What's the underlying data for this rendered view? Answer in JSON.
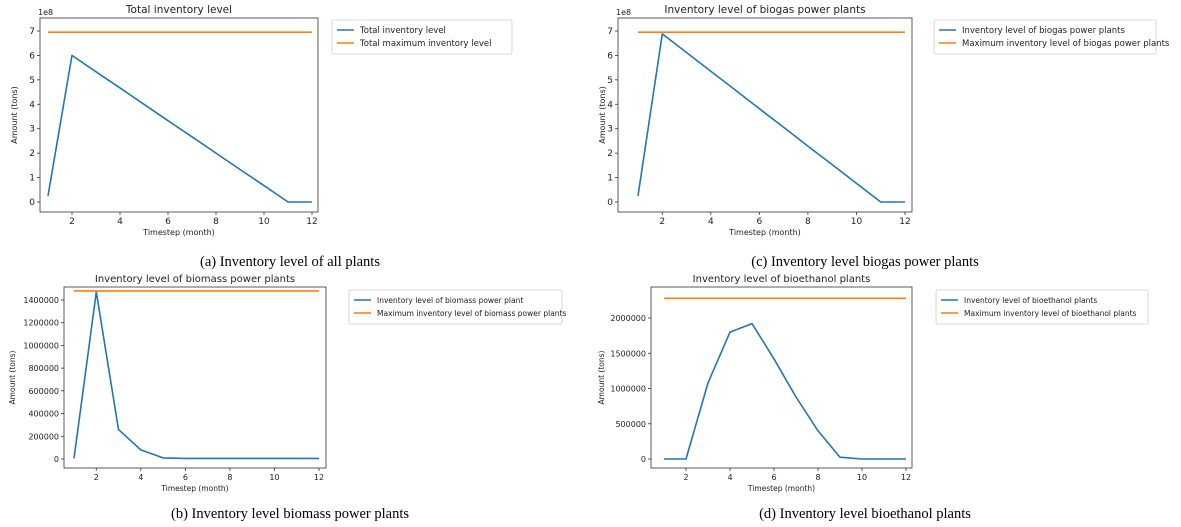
{
  "chart_data": [
    {
      "type": "line",
      "title": "Total inventory level",
      "xlabel": "Timestep (month)",
      "ylabel": "Amount (tons)",
      "exponent_label": "1e8",
      "x": [
        1,
        2,
        3,
        4,
        5,
        6,
        7,
        8,
        9,
        10,
        11,
        12
      ],
      "xlim": [
        1,
        12
      ],
      "ylim": [
        0,
        7
      ],
      "xticks": [
        2,
        4,
        6,
        8,
        10,
        12
      ],
      "yticks": [
        0,
        1,
        2,
        3,
        4,
        5,
        6,
        7
      ],
      "ytick_labels": [
        "0",
        "1",
        "2",
        "3",
        "4",
        "5",
        "6",
        "7"
      ],
      "grid": false,
      "legend_position": "right, outside",
      "series": [
        {
          "name": "Total inventory level",
          "color": "#1f77b4",
          "values": [
            0.25,
            6.0,
            5.33,
            4.67,
            4.0,
            3.33,
            2.67,
            2.0,
            1.33,
            0.67,
            0.0,
            0.0
          ]
        },
        {
          "name": "Total maximum inventory level",
          "color": "#ff7f0e",
          "values": [
            6.95,
            6.95,
            6.95,
            6.95,
            6.95,
            6.95,
            6.95,
            6.95,
            6.95,
            6.95,
            6.95,
            6.95
          ]
        }
      ],
      "caption": "(a) Inventory level of all plants"
    },
    {
      "type": "line",
      "title": "Inventory level of biogas power plants",
      "xlabel": "Timestep (month)",
      "ylabel": "Amount (tons)",
      "exponent_label": "1e8",
      "x": [
        1,
        2,
        3,
        4,
        5,
        6,
        7,
        8,
        9,
        10,
        11,
        12
      ],
      "xlim": [
        1,
        12
      ],
      "ylim": [
        0,
        7
      ],
      "xticks": [
        2,
        4,
        6,
        8,
        10,
        12
      ],
      "yticks": [
        0,
        1,
        2,
        3,
        4,
        5,
        6,
        7
      ],
      "ytick_labels": [
        "0",
        "1",
        "2",
        "3",
        "4",
        "5",
        "6",
        "7"
      ],
      "grid": false,
      "legend_position": "right, outside",
      "series": [
        {
          "name": "Inventory level of biogas power plants",
          "color": "#1f77b4",
          "values": [
            0.25,
            6.88,
            6.12,
            5.35,
            4.59,
            3.82,
            3.06,
            2.29,
            1.53,
            0.76,
            0.0,
            0.0
          ]
        },
        {
          "name": "Maximum inventory level of biogas power plants",
          "color": "#ff7f0e",
          "values": [
            6.95,
            6.95,
            6.95,
            6.95,
            6.95,
            6.95,
            6.95,
            6.95,
            6.95,
            6.95,
            6.95,
            6.95
          ]
        }
      ],
      "caption": "(c) Inventory level biogas power plants"
    },
    {
      "type": "line",
      "title": "Inventory level of biomass power plants",
      "xlabel": "Timestep (month)",
      "ylabel": "Amount (tons)",
      "x": [
        1,
        2,
        3,
        4,
        5,
        6,
        7,
        8,
        9,
        10,
        11,
        12
      ],
      "xlim": [
        1,
        12
      ],
      "ylim": [
        0,
        1400000
      ],
      "xticks": [
        2,
        4,
        6,
        8,
        10,
        12
      ],
      "yticks": [
        0,
        200000,
        400000,
        600000,
        800000,
        1000000,
        1200000,
        1400000
      ],
      "ytick_labels": [
        "0",
        "200000",
        "400000",
        "600000",
        "800000",
        "1000000",
        "1200000",
        "1400000"
      ],
      "grid": false,
      "legend_position": "right, outside",
      "series": [
        {
          "name": "Inventory level of biomass power plant",
          "color": "#1f77b4",
          "values": [
            5000,
            1470000,
            260000,
            80000,
            10000,
            5000,
            5000,
            5000,
            5000,
            5000,
            5000,
            5000
          ]
        },
        {
          "name": "Maximum inventory level of biomass power plants",
          "color": "#ff7f0e",
          "values": [
            1480000,
            1480000,
            1480000,
            1480000,
            1480000,
            1480000,
            1480000,
            1480000,
            1480000,
            1480000,
            1480000,
            1480000
          ]
        }
      ],
      "caption": "(b) Inventory level biomass power plants"
    },
    {
      "type": "line",
      "title": "Inventory level of bioethanol plants",
      "xlabel": "Timestep (month)",
      "ylabel": "Amount (tons)",
      "x": [
        1,
        2,
        3,
        4,
        5,
        6,
        7,
        8,
        9,
        10,
        11,
        12
      ],
      "xlim": [
        1,
        12
      ],
      "ylim": [
        0,
        2000000
      ],
      "xticks": [
        2,
        4,
        6,
        8,
        10,
        12
      ],
      "yticks": [
        0,
        500000,
        1000000,
        1500000,
        2000000
      ],
      "ytick_labels": [
        "0",
        "500000",
        "1000000",
        "1500000",
        "2000000"
      ],
      "grid": false,
      "legend_position": "right, outside",
      "series": [
        {
          "name": "Inventory level of bioethanol plants",
          "color": "#1f77b4",
          "values": [
            0,
            0,
            1080000,
            1800000,
            1920000,
            1420000,
            880000,
            400000,
            25000,
            0,
            0,
            0
          ]
        },
        {
          "name": "Maximum inventory level of bioethanol plants",
          "color": "#ff7f0e",
          "values": [
            2280000,
            2280000,
            2280000,
            2280000,
            2280000,
            2280000,
            2280000,
            2280000,
            2280000,
            2280000,
            2280000,
            2280000
          ]
        }
      ],
      "caption": "(d) Inventory level bioethanol plants"
    }
  ]
}
